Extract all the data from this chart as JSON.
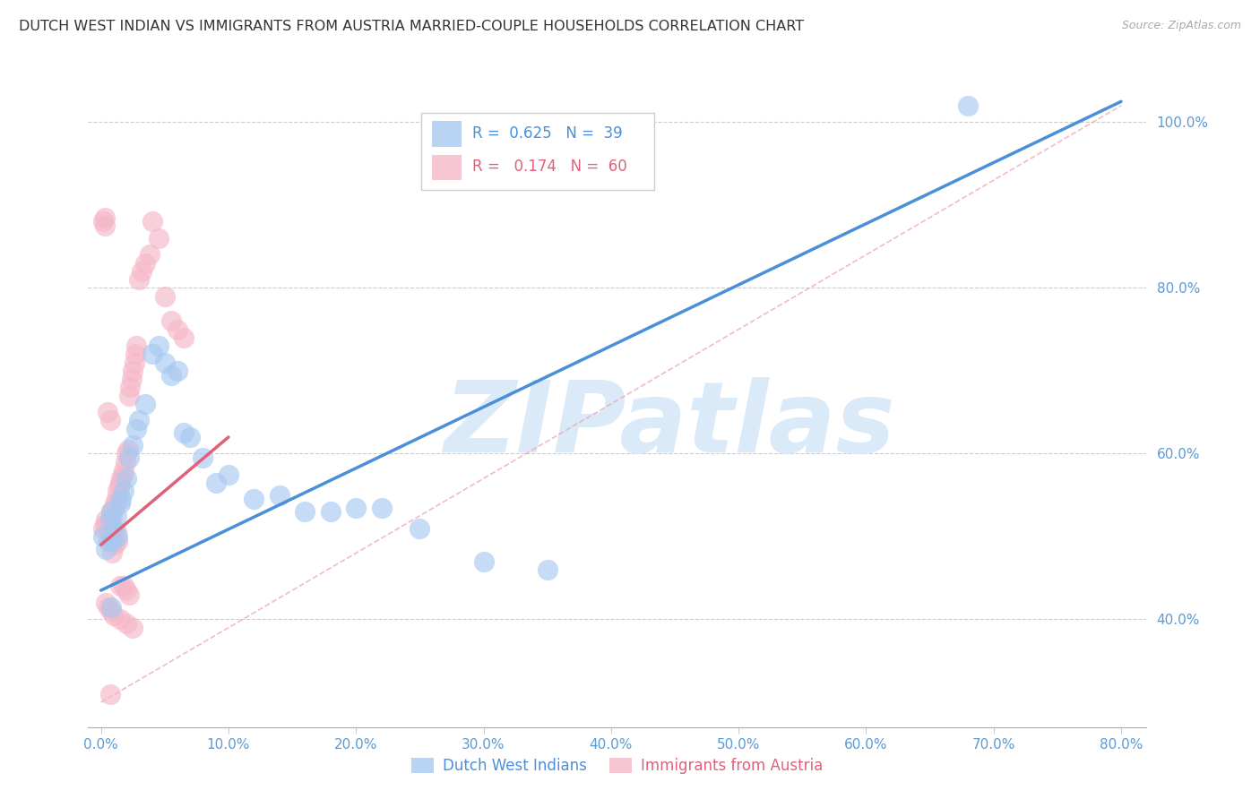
{
  "title": "DUTCH WEST INDIAN VS IMMIGRANTS FROM AUSTRIA MARRIED-COUPLE HOUSEHOLDS CORRELATION CHART",
  "source": "Source: ZipAtlas.com",
  "xlabel_ticks": [
    "0.0%",
    "10.0%",
    "20.0%",
    "30.0%",
    "40.0%",
    "50.0%",
    "60.0%",
    "70.0%",
    "80.0%"
  ],
  "xlabel_vals": [
    0.0,
    0.1,
    0.2,
    0.3,
    0.4,
    0.5,
    0.6,
    0.7,
    0.8
  ],
  "ylabel_ticks_right": [
    "40.0%",
    "60.0%",
    "80.0%",
    "100.0%"
  ],
  "ylabel_vals_right": [
    0.4,
    0.6,
    0.8,
    1.0
  ],
  "legend_label1": "Dutch West Indians",
  "legend_label2": "Immigrants from Austria",
  "r1": 0.625,
  "n1": 39,
  "r2": 0.174,
  "n2": 60,
  "color_blue": "#a8c8f0",
  "color_pink": "#f5b8c8",
  "color_blue_line": "#4a90d9",
  "color_pink_line": "#e0607a",
  "color_title": "#333333",
  "color_source": "#aaaaaa",
  "color_axis_labels": "#5b9bd5",
  "color_watermark": "#daeaf8",
  "watermark_text": "ZIPatlas",
  "blue_scatter_x": [
    0.002,
    0.004,
    0.006,
    0.007,
    0.008,
    0.009,
    0.01,
    0.012,
    0.013,
    0.015,
    0.016,
    0.018,
    0.02,
    0.022,
    0.025,
    0.028,
    0.03,
    0.035,
    0.04,
    0.045,
    0.05,
    0.055,
    0.06,
    0.065,
    0.07,
    0.08,
    0.09,
    0.1,
    0.12,
    0.14,
    0.16,
    0.18,
    0.2,
    0.22,
    0.25,
    0.3,
    0.35,
    0.68,
    0.008
  ],
  "blue_scatter_y": [
    0.5,
    0.485,
    0.495,
    0.52,
    0.53,
    0.495,
    0.51,
    0.525,
    0.5,
    0.54,
    0.545,
    0.555,
    0.57,
    0.595,
    0.61,
    0.63,
    0.64,
    0.66,
    0.72,
    0.73,
    0.71,
    0.695,
    0.7,
    0.625,
    0.62,
    0.595,
    0.565,
    0.575,
    0.545,
    0.55,
    0.53,
    0.53,
    0.535,
    0.535,
    0.51,
    0.47,
    0.46,
    1.02,
    0.415
  ],
  "pink_scatter_x": [
    0.002,
    0.003,
    0.004,
    0.005,
    0.006,
    0.007,
    0.008,
    0.009,
    0.01,
    0.011,
    0.012,
    0.013,
    0.014,
    0.015,
    0.016,
    0.017,
    0.018,
    0.019,
    0.02,
    0.021,
    0.022,
    0.023,
    0.024,
    0.025,
    0.026,
    0.027,
    0.028,
    0.03,
    0.032,
    0.035,
    0.038,
    0.04,
    0.045,
    0.05,
    0.055,
    0.06,
    0.065,
    0.002,
    0.003,
    0.005,
    0.007,
    0.009,
    0.011,
    0.013,
    0.015,
    0.018,
    0.02,
    0.022,
    0.008,
    0.01,
    0.012,
    0.004,
    0.006,
    0.008,
    0.01,
    0.015,
    0.02,
    0.025,
    0.003,
    0.007
  ],
  "pink_scatter_y": [
    0.51,
    0.515,
    0.52,
    0.51,
    0.51,
    0.52,
    0.53,
    0.525,
    0.535,
    0.54,
    0.545,
    0.555,
    0.56,
    0.565,
    0.57,
    0.575,
    0.58,
    0.59,
    0.6,
    0.605,
    0.67,
    0.68,
    0.69,
    0.7,
    0.71,
    0.72,
    0.73,
    0.81,
    0.82,
    0.83,
    0.84,
    0.88,
    0.86,
    0.79,
    0.76,
    0.75,
    0.74,
    0.88,
    0.885,
    0.65,
    0.64,
    0.48,
    0.49,
    0.495,
    0.44,
    0.44,
    0.435,
    0.43,
    0.5,
    0.5,
    0.505,
    0.42,
    0.415,
    0.41,
    0.405,
    0.4,
    0.395,
    0.39,
    0.875,
    0.31
  ],
  "xlim": [
    -0.01,
    0.82
  ],
  "ylim": [
    0.27,
    1.08
  ],
  "blue_line_x": [
    0.0,
    0.8
  ],
  "blue_line_y": [
    0.435,
    1.025
  ],
  "pink_line_x": [
    0.0,
    0.1
  ],
  "pink_line_y": [
    0.49,
    0.62
  ],
  "dash_line_x": [
    0.0,
    0.8
  ],
  "dash_line_y": [
    0.3,
    1.02
  ]
}
